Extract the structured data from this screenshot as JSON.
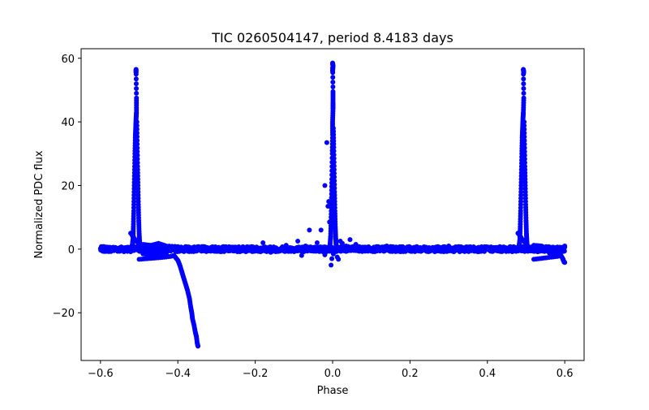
{
  "chart_data": {
    "type": "scatter",
    "title": "TIC 0260504147, period 8.4183 days",
    "xlabel": "Phase",
    "ylabel": "Normalized PDC flux",
    "xlim": [
      -0.65,
      0.65
    ],
    "ylim": [
      -35,
      63
    ],
    "x_ticks": [
      -0.6,
      -0.4,
      -0.2,
      0.0,
      0.2,
      0.4,
      0.6
    ],
    "x_tick_labels": [
      "−0.6",
      "−0.4",
      "−0.2",
      "0.0",
      "0.2",
      "0.4",
      "0.6"
    ],
    "y_ticks": [
      -20,
      0,
      20,
      40,
      60
    ],
    "y_tick_labels": [
      "−20",
      "0",
      "20",
      "40",
      "60"
    ],
    "grid": false,
    "marker_color": "#0000ff",
    "series": [
      {
        "marker": "circle",
        "baseline": {
          "x_range": [
            -0.6,
            0.6
          ],
          "y": 0.0,
          "scatter": 0.8
        },
        "flares": [
          {
            "points": [
              [
                -0.518,
                1.0
              ],
              [
                -0.516,
                3.0
              ],
              [
                -0.515,
                7.0
              ],
              [
                -0.514,
                12.0
              ],
              [
                -0.513,
                18.0
              ],
              [
                -0.512,
                24.0
              ],
              [
                -0.511,
                30.0
              ],
              [
                -0.51,
                35.0
              ],
              [
                -0.509,
                38.0
              ],
              [
                -0.508,
                41.0
              ],
              [
                -0.507,
                43.0
              ],
              [
                -0.507,
                47.5
              ],
              [
                -0.508,
                56.5
              ],
              [
                -0.508,
                55.5
              ],
              [
                -0.506,
                40.0
              ],
              [
                -0.505,
                33.0
              ],
              [
                -0.504,
                26.0
              ],
              [
                -0.503,
                20.0
              ],
              [
                -0.502,
                14.0
              ],
              [
                -0.501,
                9.0
              ],
              [
                -0.5,
                5.0
              ],
              [
                -0.499,
                2.5
              ],
              [
                -0.498,
                1.0
              ],
              [
                -0.522,
                5.0
              ]
            ]
          },
          {
            "points": [
              [
                -0.007,
                1.0
              ],
              [
                -0.005,
                4.0
              ],
              [
                -0.004,
                9.0
              ],
              [
                -0.003,
                15.0
              ],
              [
                -0.002,
                22.0
              ],
              [
                -0.001,
                30.0
              ],
              [
                0.0,
                36.0
              ],
              [
                0.0,
                40.0
              ],
              [
                0.001,
                44.0
              ],
              [
                0.001,
                46.0
              ],
              [
                0.001,
                49.5
              ],
              [
                0.0,
                58.5
              ],
              [
                0.001,
                57.5
              ],
              [
                0.0,
                56.0
              ],
              [
                0.002,
                38.0
              ],
              [
                0.003,
                32.0
              ],
              [
                0.004,
                25.0
              ],
              [
                0.005,
                18.0
              ],
              [
                0.006,
                12.0
              ],
              [
                0.007,
                7.0
              ],
              [
                0.008,
                3.5
              ],
              [
                0.009,
                1.5
              ]
            ]
          },
          {
            "points": [
              [
                0.482,
                1.0
              ],
              [
                0.484,
                3.0
              ],
              [
                0.485,
                7.0
              ],
              [
                0.486,
                12.0
              ],
              [
                0.487,
                18.0
              ],
              [
                0.488,
                24.0
              ],
              [
                0.489,
                30.0
              ],
              [
                0.49,
                35.0
              ],
              [
                0.491,
                38.0
              ],
              [
                0.492,
                41.0
              ],
              [
                0.493,
                43.0
              ],
              [
                0.494,
                47.5
              ],
              [
                0.493,
                56.5
              ],
              [
                0.494,
                55.5
              ],
              [
                0.495,
                40.0
              ],
              [
                0.496,
                33.0
              ],
              [
                0.497,
                26.0
              ],
              [
                0.498,
                20.0
              ],
              [
                0.499,
                14.0
              ],
              [
                0.5,
                9.0
              ],
              [
                0.501,
                5.0
              ],
              [
                0.502,
                2.5
              ],
              [
                0.503,
                1.0
              ],
              [
                0.479,
                5.0
              ]
            ]
          }
        ],
        "decay_tracks": [
          {
            "points": [
              [
                -0.5,
                -3.2
              ],
              [
                -0.48,
                -3.0
              ],
              [
                -0.46,
                -2.8
              ],
              [
                -0.44,
                -2.6
              ],
              [
                -0.42,
                -2.3
              ],
              [
                -0.41,
                -2.0
              ],
              [
                -0.4,
                -3.5
              ],
              [
                -0.395,
                -5.0
              ],
              [
                -0.39,
                -7.0
              ],
              [
                -0.385,
                -9.0
              ],
              [
                -0.38,
                -11.0
              ],
              [
                -0.375,
                -13.0
              ],
              [
                -0.37,
                -15.5
              ],
              [
                -0.367,
                -18.0
              ],
              [
                -0.364,
                -20.0
              ],
              [
                -0.362,
                -22.0
              ],
              [
                -0.358,
                -24.0
              ],
              [
                -0.355,
                -26.0
              ],
              [
                -0.352,
                -27.5
              ],
              [
                -0.35,
                -29.5
              ],
              [
                -0.348,
                -30.5
              ]
            ]
          },
          {
            "points": [
              [
                0.52,
                -3.2
              ],
              [
                0.54,
                -2.9
              ],
              [
                0.56,
                -2.6
              ],
              [
                0.58,
                -2.3
              ],
              [
                0.59,
                -2.0
              ],
              [
                0.595,
                -3.0
              ],
              [
                0.598,
                -4.0
              ],
              [
                0.6,
                -4.2
              ]
            ]
          },
          {
            "points": [
              [
                -0.49,
                1.5
              ],
              [
                -0.47,
                1.2
              ],
              [
                -0.45,
                1.8
              ],
              [
                -0.43,
                1.0
              ],
              [
                -0.4,
                0.8
              ],
              [
                -0.49,
                -1.5
              ],
              [
                -0.47,
                -1.8
              ],
              [
                -0.45,
                -1.4
              ],
              [
                -0.44,
                -2.0
              ],
              [
                -0.43,
                -1.6
              ],
              [
                0.52,
                1.2
              ],
              [
                0.54,
                1.0
              ],
              [
                0.56,
                -1.2
              ],
              [
                0.58,
                -1.5
              ],
              [
                0.6,
                1.0
              ]
            ]
          }
        ],
        "outliers": [
          [
            -0.09,
            2.5
          ],
          [
            -0.08,
            -2.0
          ],
          [
            -0.07,
            1.0
          ],
          [
            -0.05,
            0.5
          ],
          [
            -0.04,
            2.0
          ],
          [
            -0.03,
            6.0
          ],
          [
            -0.02,
            20.0
          ],
          [
            -0.015,
            33.5
          ],
          [
            -0.012,
            13.5
          ],
          [
            -0.01,
            15.0
          ],
          [
            -0.008,
            8.5
          ],
          [
            -0.005,
            4.0
          ],
          [
            -0.004,
            -5.0
          ],
          [
            -0.002,
            -3.0
          ],
          [
            0.002,
            -1.5
          ],
          [
            0.012,
            -2.5
          ],
          [
            0.015,
            -3.2
          ],
          [
            0.02,
            2.5
          ],
          [
            0.025,
            1.8
          ],
          [
            0.035,
            1.0
          ],
          [
            0.045,
            3.0
          ],
          [
            0.06,
            1.5
          ],
          [
            -0.18,
            2.0
          ],
          [
            -0.16,
            -1.0
          ],
          [
            -0.12,
            1.2
          ],
          [
            0.14,
            1.0
          ],
          [
            0.3,
            1.0
          ],
          [
            -0.02,
            -1.8
          ],
          [
            -0.06,
            6.0
          ],
          [
            -0.025,
            -0.8
          ]
        ]
      }
    ]
  }
}
